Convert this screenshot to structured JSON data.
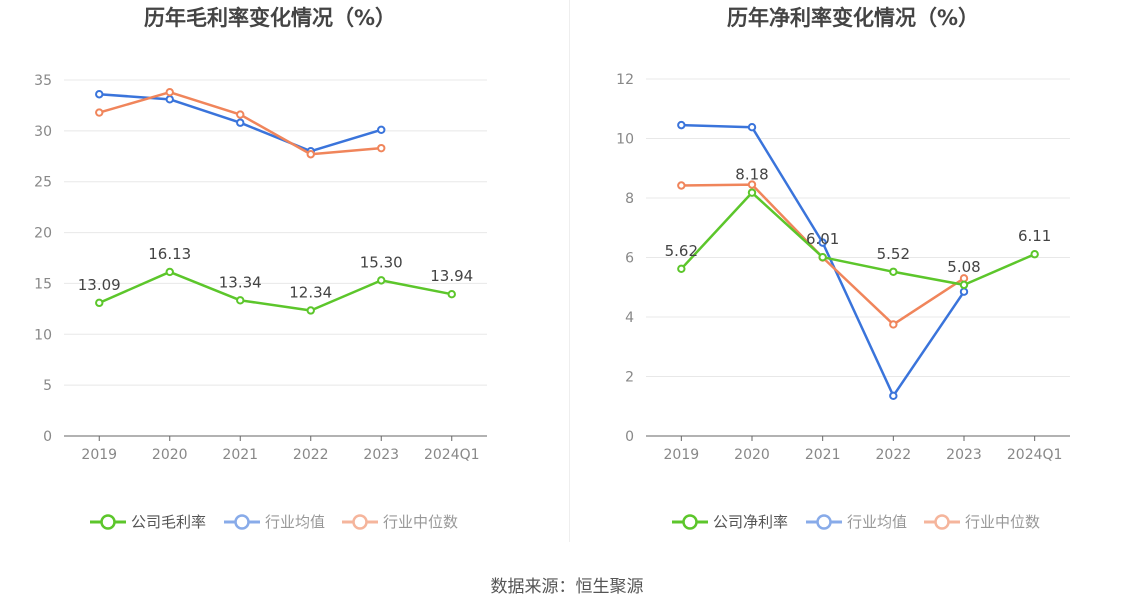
{
  "colors": {
    "company": "#5cc62b",
    "avg": "#3a74db",
    "median": "#f0855b"
  },
  "chart_data": [
    {
      "type": "line",
      "title": "历年毛利率变化情况（%）",
      "categories": [
        "2019",
        "2020",
        "2021",
        "2022",
        "2023",
        "2024Q1"
      ],
      "ylim": [
        0,
        35
      ],
      "yticks": [
        0,
        5,
        10,
        15,
        20,
        25,
        30,
        35
      ],
      "grid": true,
      "legend_position": "bottom",
      "series": [
        {
          "name": "公司毛利率",
          "values": [
            13.09,
            16.13,
            13.34,
            12.34,
            15.3,
            13.94
          ],
          "labels": [
            "13.09",
            "16.13",
            "13.34",
            "12.34",
            "15.30",
            "13.94"
          ]
        },
        {
          "name": "行业均值",
          "values": [
            33.6,
            33.1,
            30.8,
            28.0,
            30.1,
            null
          ]
        },
        {
          "name": "行业中位数",
          "values": [
            31.8,
            33.8,
            31.6,
            27.7,
            28.3,
            null
          ]
        }
      ]
    },
    {
      "type": "line",
      "title": "历年净利率变化情况（%）",
      "categories": [
        "2019",
        "2020",
        "2021",
        "2022",
        "2023",
        "2024Q1"
      ],
      "ylim": [
        0,
        12
      ],
      "yticks": [
        0,
        2,
        4,
        6,
        8,
        10,
        12
      ],
      "grid": true,
      "legend_position": "bottom",
      "series": [
        {
          "name": "公司净利率",
          "values": [
            5.62,
            8.18,
            6.01,
            5.52,
            5.08,
            6.11
          ],
          "labels": [
            "5.62",
            "8.18",
            "6.01",
            "5.52",
            "5.08",
            "6.11"
          ]
        },
        {
          "name": "行业均值",
          "values": [
            10.45,
            10.38,
            6.5,
            1.35,
            4.85,
            null
          ]
        },
        {
          "name": "行业中位数",
          "values": [
            8.42,
            8.45,
            6.0,
            3.75,
            5.3,
            null
          ]
        }
      ]
    }
  ],
  "source": "数据来源：恒生聚源"
}
